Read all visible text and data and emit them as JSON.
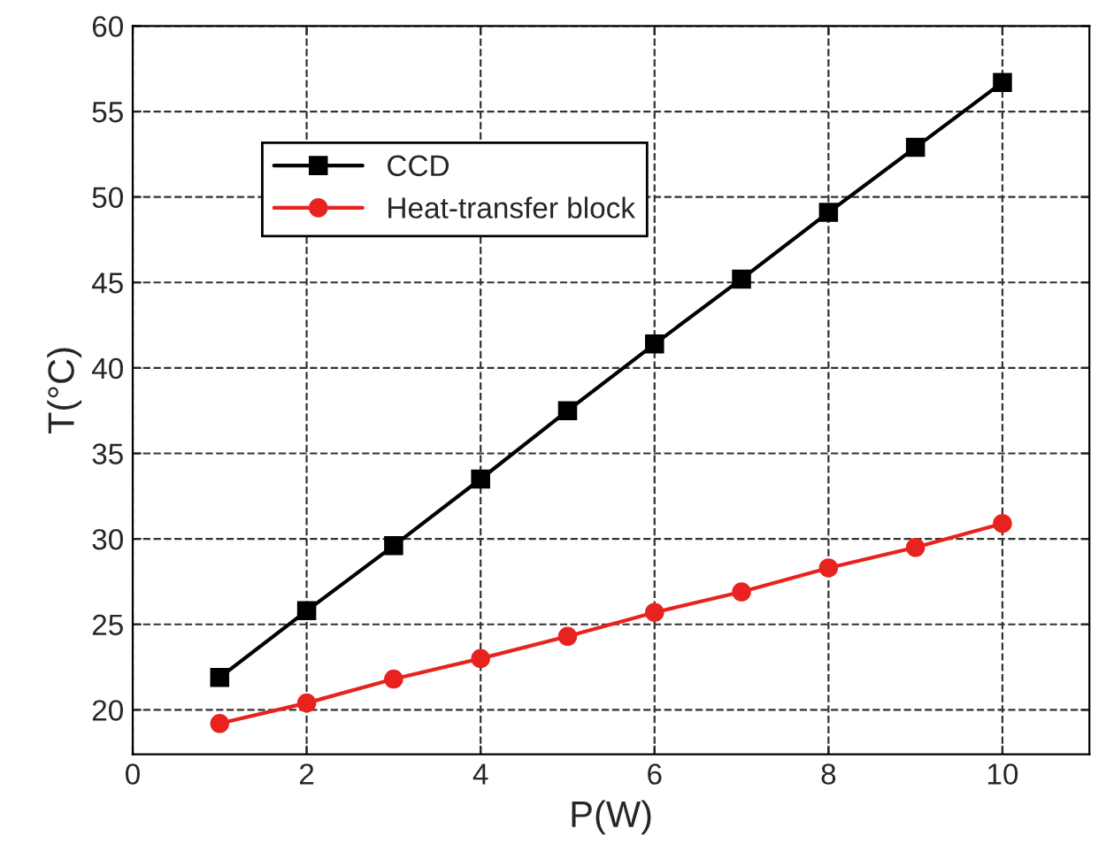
{
  "chart_data": {
    "type": "line",
    "xlabel": "P(W)",
    "ylabel": "T(°C)",
    "x": [
      1,
      2,
      3,
      4,
      5,
      6,
      7,
      8,
      9,
      10
    ],
    "series": [
      {
        "name": "CCD",
        "color": "#000000",
        "marker": "square",
        "values": [
          21.9,
          25.8,
          29.6,
          33.5,
          37.5,
          41.4,
          45.2,
          49.1,
          52.9,
          56.7
        ]
      },
      {
        "name": "Heat-transfer block",
        "color": "#e8231f",
        "marker": "circle",
        "values": [
          19.2,
          20.4,
          21.8,
          23.0,
          24.3,
          25.7,
          26.9,
          28.3,
          29.5,
          30.9
        ]
      }
    ],
    "xlim": [
      0,
      11
    ],
    "xticks": [
      0,
      2,
      4,
      6,
      8,
      10
    ],
    "ylim": [
      17.4,
      60
    ],
    "yticks": [
      20,
      25,
      30,
      35,
      40,
      45,
      50,
      55,
      60
    ],
    "grid": true,
    "legend": "top left",
    "line_style": "solid"
  }
}
